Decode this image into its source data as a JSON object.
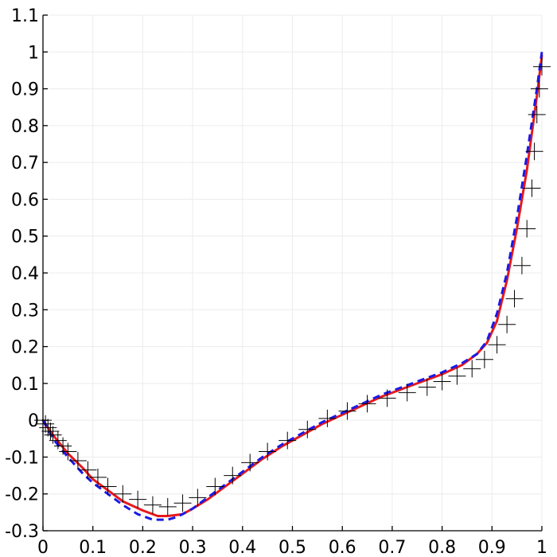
{
  "chart_data": {
    "type": "line",
    "title": "",
    "xlabel": "",
    "ylabel": "",
    "xlim": [
      0,
      1
    ],
    "ylim": [
      -0.3,
      1.1
    ],
    "grid": true,
    "legend": "none",
    "x_ticks": [
      "0",
      "0.1",
      "0.2",
      "0.3",
      "0.4",
      "0.5",
      "0.6",
      "0.7",
      "0.8",
      "0.9",
      "1"
    ],
    "y_ticks": [
      "-0.3",
      "-0.2",
      "-0.1",
      "0",
      "0.1",
      "0.2",
      "0.3",
      "0.4",
      "0.5",
      "0.6",
      "0.7",
      "0.8",
      "0.9",
      "1",
      "1.1"
    ],
    "series": [
      {
        "style": "solid-line",
        "color": "#e8191c",
        "x": [
          0,
          0.02,
          0.05,
          0.08,
          0.1,
          0.13,
          0.16,
          0.2,
          0.23,
          0.25,
          0.28,
          0.3,
          0.33,
          0.36,
          0.4,
          0.44,
          0.48,
          0.52,
          0.56,
          0.6,
          0.64,
          0.68,
          0.72,
          0.76,
          0.8,
          0.84,
          0.87,
          0.89,
          0.91,
          0.93,
          0.95,
          0.97,
          0.99,
          1.0
        ],
        "y": [
          0.0,
          -0.04,
          -0.09,
          -0.13,
          -0.16,
          -0.19,
          -0.22,
          -0.245,
          -0.26,
          -0.26,
          -0.255,
          -0.24,
          -0.215,
          -0.185,
          -0.145,
          -0.105,
          -0.07,
          -0.04,
          -0.01,
          0.015,
          0.04,
          0.065,
          0.085,
          0.105,
          0.125,
          0.15,
          0.18,
          0.21,
          0.27,
          0.38,
          0.52,
          0.68,
          0.88,
          0.99
        ]
      },
      {
        "style": "dashed-line",
        "color": "#1a1ae6",
        "x": [
          0,
          0.02,
          0.05,
          0.08,
          0.1,
          0.13,
          0.16,
          0.19,
          0.22,
          0.25,
          0.27,
          0.3,
          0.33,
          0.36,
          0.4,
          0.44,
          0.48,
          0.52,
          0.56,
          0.6,
          0.64,
          0.68,
          0.72,
          0.76,
          0.8,
          0.84,
          0.87,
          0.89,
          0.91,
          0.93,
          0.95,
          0.97,
          0.99,
          1.0
        ],
        "y": [
          0.0,
          -0.05,
          -0.1,
          -0.145,
          -0.17,
          -0.2,
          -0.23,
          -0.255,
          -0.27,
          -0.27,
          -0.262,
          -0.24,
          -0.21,
          -0.18,
          -0.14,
          -0.1,
          -0.065,
          -0.035,
          -0.005,
          0.02,
          0.045,
          0.07,
          0.09,
          0.11,
          0.13,
          0.155,
          0.18,
          0.215,
          0.29,
          0.4,
          0.55,
          0.72,
          0.9,
          1.0
        ]
      },
      {
        "style": "plus-markers",
        "color": "#000000",
        "x": [
          0.0,
          0.005,
          0.01,
          0.015,
          0.02,
          0.03,
          0.04,
          0.05,
          0.07,
          0.09,
          0.11,
          0.13,
          0.16,
          0.19,
          0.22,
          0.25,
          0.28,
          0.31,
          0.345,
          0.38,
          0.415,
          0.45,
          0.49,
          0.53,
          0.57,
          0.61,
          0.65,
          0.69,
          0.73,
          0.77,
          0.8,
          0.83,
          0.86,
          0.885,
          0.91,
          0.93,
          0.945,
          0.96,
          0.97,
          0.98,
          0.985,
          0.99,
          0.995,
          1.0
        ],
        "y": [
          0.0,
          -0.01,
          -0.02,
          -0.03,
          -0.04,
          -0.055,
          -0.07,
          -0.085,
          -0.11,
          -0.135,
          -0.155,
          -0.18,
          -0.2,
          -0.215,
          -0.23,
          -0.235,
          -0.225,
          -0.21,
          -0.18,
          -0.15,
          -0.115,
          -0.085,
          -0.055,
          -0.025,
          0.005,
          0.025,
          0.045,
          0.06,
          0.075,
          0.09,
          0.105,
          0.12,
          0.14,
          0.165,
          0.205,
          0.26,
          0.33,
          0.42,
          0.52,
          0.63,
          0.73,
          0.83,
          0.9,
          0.96
        ]
      }
    ]
  }
}
